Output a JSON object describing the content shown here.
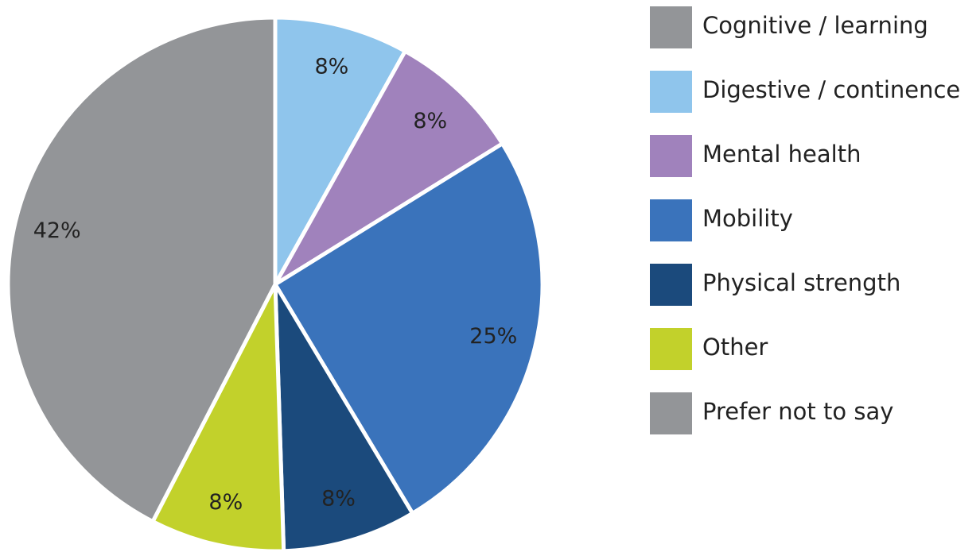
{
  "chart_data": {
    "type": "pie",
    "categories": [
      "Cognitive / learning",
      "Digestive / continence",
      "Mental health",
      "Mobility",
      "Physical strength",
      "Other",
      "Prefer not to say"
    ],
    "values": [
      0,
      8,
      8,
      25,
      8,
      8,
      42
    ],
    "value_labels": [
      null,
      "8%",
      "8%",
      "25%",
      "8%",
      "8%",
      "42%"
    ],
    "colors": [
      "#939598",
      "#8fc5ec",
      "#a082bc",
      "#3a73bb",
      "#1b4a7c",
      "#c2d12b",
      "#939598"
    ],
    "legend": "right"
  }
}
